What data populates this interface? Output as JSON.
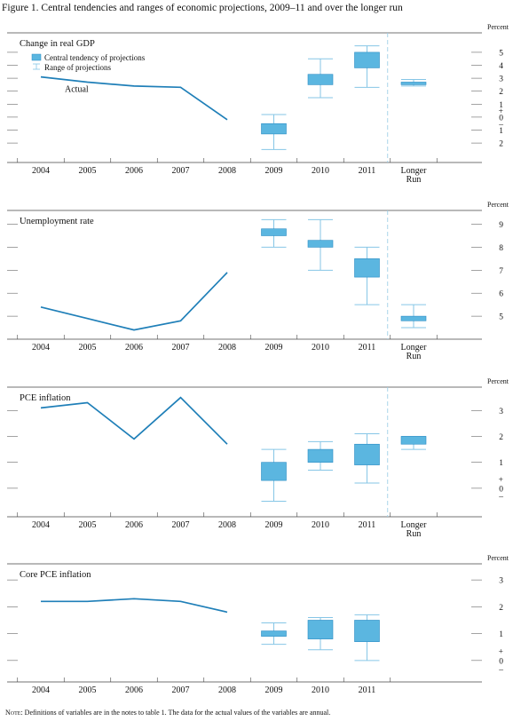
{
  "figure_title": "Figure 1. Central tendencies and ranges of economic projections, 2009–11 and over the longer run",
  "note": {
    "label": "Note:",
    "text": "Definitions of variables are in the notes to table 1. The data for the actual values of the variables are annual."
  },
  "colors": {
    "actual_line": "#1f7fb8",
    "central_fill": "#5bb6e0",
    "central_stroke": "#2a8cc4",
    "range_line": "#86c6e6",
    "separator": "#9fcfe8"
  },
  "chart_data": [
    {
      "type": "line",
      "title": "Change in real GDP",
      "unit_label": "Percent",
      "categories": [
        "2004",
        "2005",
        "2006",
        "2007",
        "2008",
        "2009",
        "2010",
        "2011",
        "Longer Run"
      ],
      "ylim": [
        -3.5,
        6.5
      ],
      "yticks": [
        {
          "value": 5,
          "label": "5"
        },
        {
          "value": 4,
          "label": "4"
        },
        {
          "value": 3,
          "label": "3"
        },
        {
          "value": 2,
          "label": "2"
        },
        {
          "value": 1,
          "label": "1"
        },
        {
          "value": 0.5,
          "label": "+"
        },
        {
          "value": 0,
          "label": "0"
        },
        {
          "value": -0.5,
          "label": "–"
        },
        {
          "value": -1,
          "label": "1"
        },
        {
          "value": -2,
          "label": "2"
        }
      ],
      "actual": {
        "label": "Actual",
        "x": [
          "2004",
          "2005",
          "2006",
          "2007",
          "2008"
        ],
        "values": [
          3.1,
          2.7,
          2.4,
          2.3,
          -0.2
        ]
      },
      "legend": {
        "central": "Central tendency of projections",
        "range": "Range of projections"
      },
      "projections": [
        {
          "x": "2009",
          "central": [
            -1.3,
            -0.5
          ],
          "range": [
            -2.5,
            0.2
          ]
        },
        {
          "x": "2010",
          "central": [
            2.5,
            3.3
          ],
          "range": [
            1.5,
            4.5
          ]
        },
        {
          "x": "2011",
          "central": [
            3.8,
            5.0
          ],
          "range": [
            2.3,
            5.5
          ]
        },
        {
          "x": "Longer Run",
          "central": [
            2.5,
            2.7
          ],
          "range": [
            2.4,
            2.9
          ]
        }
      ]
    },
    {
      "type": "line",
      "title": "Unemployment rate",
      "unit_label": "Percent",
      "categories": [
        "2004",
        "2005",
        "2006",
        "2007",
        "2008",
        "2009",
        "2010",
        "2011",
        "Longer Run"
      ],
      "ylim": [
        4.0,
        9.6
      ],
      "yticks": [
        {
          "value": 9,
          "label": "9"
        },
        {
          "value": 8,
          "label": "8"
        },
        {
          "value": 7,
          "label": "7"
        },
        {
          "value": 6,
          "label": "6"
        },
        {
          "value": 5,
          "label": "5"
        }
      ],
      "actual": {
        "x": [
          "2004",
          "2005",
          "2006",
          "2007",
          "2008"
        ],
        "values": [
          5.4,
          4.9,
          4.4,
          4.8,
          6.9
        ]
      },
      "projections": [
        {
          "x": "2009",
          "central": [
            8.5,
            8.8
          ],
          "range": [
            8.0,
            9.2
          ]
        },
        {
          "x": "2010",
          "central": [
            8.0,
            8.3
          ],
          "range": [
            7.0,
            9.2
          ]
        },
        {
          "x": "2011",
          "central": [
            6.7,
            7.5
          ],
          "range": [
            5.5,
            8.0
          ]
        },
        {
          "x": "Longer Run",
          "central": [
            4.8,
            5.0
          ],
          "range": [
            4.5,
            5.5
          ]
        }
      ]
    },
    {
      "type": "line",
      "title": "PCE inflation",
      "unit_label": "Percent",
      "categories": [
        "2004",
        "2005",
        "2006",
        "2007",
        "2008",
        "2009",
        "2010",
        "2011",
        "Longer Run"
      ],
      "ylim": [
        -1.1,
        3.9
      ],
      "yticks": [
        {
          "value": 3,
          "label": "3"
        },
        {
          "value": 2,
          "label": "2"
        },
        {
          "value": 1,
          "label": "1"
        },
        {
          "value": 0.35,
          "label": "+"
        },
        {
          "value": 0,
          "label": "0"
        },
        {
          "value": -0.3,
          "label": "–"
        }
      ],
      "actual": {
        "x": [
          "2004",
          "2005",
          "2006",
          "2007",
          "2008"
        ],
        "values": [
          3.1,
          3.3,
          1.9,
          3.5,
          1.7
        ]
      },
      "projections": [
        {
          "x": "2009",
          "central": [
            0.3,
            1.0
          ],
          "range": [
            -0.5,
            1.5
          ]
        },
        {
          "x": "2010",
          "central": [
            1.0,
            1.5
          ],
          "range": [
            0.7,
            1.8
          ]
        },
        {
          "x": "2011",
          "central": [
            0.9,
            1.7
          ],
          "range": [
            0.2,
            2.1
          ]
        },
        {
          "x": "Longer Run",
          "central": [
            1.7,
            2.0
          ],
          "range": [
            1.5,
            2.0
          ]
        }
      ]
    },
    {
      "type": "line",
      "title": "Core PCE inflation",
      "unit_label": "Percent",
      "categories": [
        "2004",
        "2005",
        "2006",
        "2007",
        "2008",
        "2009",
        "2010",
        "2011"
      ],
      "ylim": [
        -0.8,
        3.6
      ],
      "yticks": [
        {
          "value": 3,
          "label": "3"
        },
        {
          "value": 2,
          "label": "2"
        },
        {
          "value": 1,
          "label": "1"
        },
        {
          "value": 0.35,
          "label": "+"
        },
        {
          "value": 0,
          "label": "0"
        },
        {
          "value": -0.3,
          "label": "–"
        }
      ],
      "actual": {
        "x": [
          "2004",
          "2005",
          "2006",
          "2007",
          "2008"
        ],
        "values": [
          2.2,
          2.2,
          2.3,
          2.2,
          1.8
        ]
      },
      "projections": [
        {
          "x": "2009",
          "central": [
            0.9,
            1.1
          ],
          "range": [
            0.6,
            1.4
          ]
        },
        {
          "x": "2010",
          "central": [
            0.8,
            1.5
          ],
          "range": [
            0.4,
            1.6
          ]
        },
        {
          "x": "2011",
          "central": [
            0.7,
            1.5
          ],
          "range": [
            0.0,
            1.7
          ]
        }
      ]
    }
  ]
}
